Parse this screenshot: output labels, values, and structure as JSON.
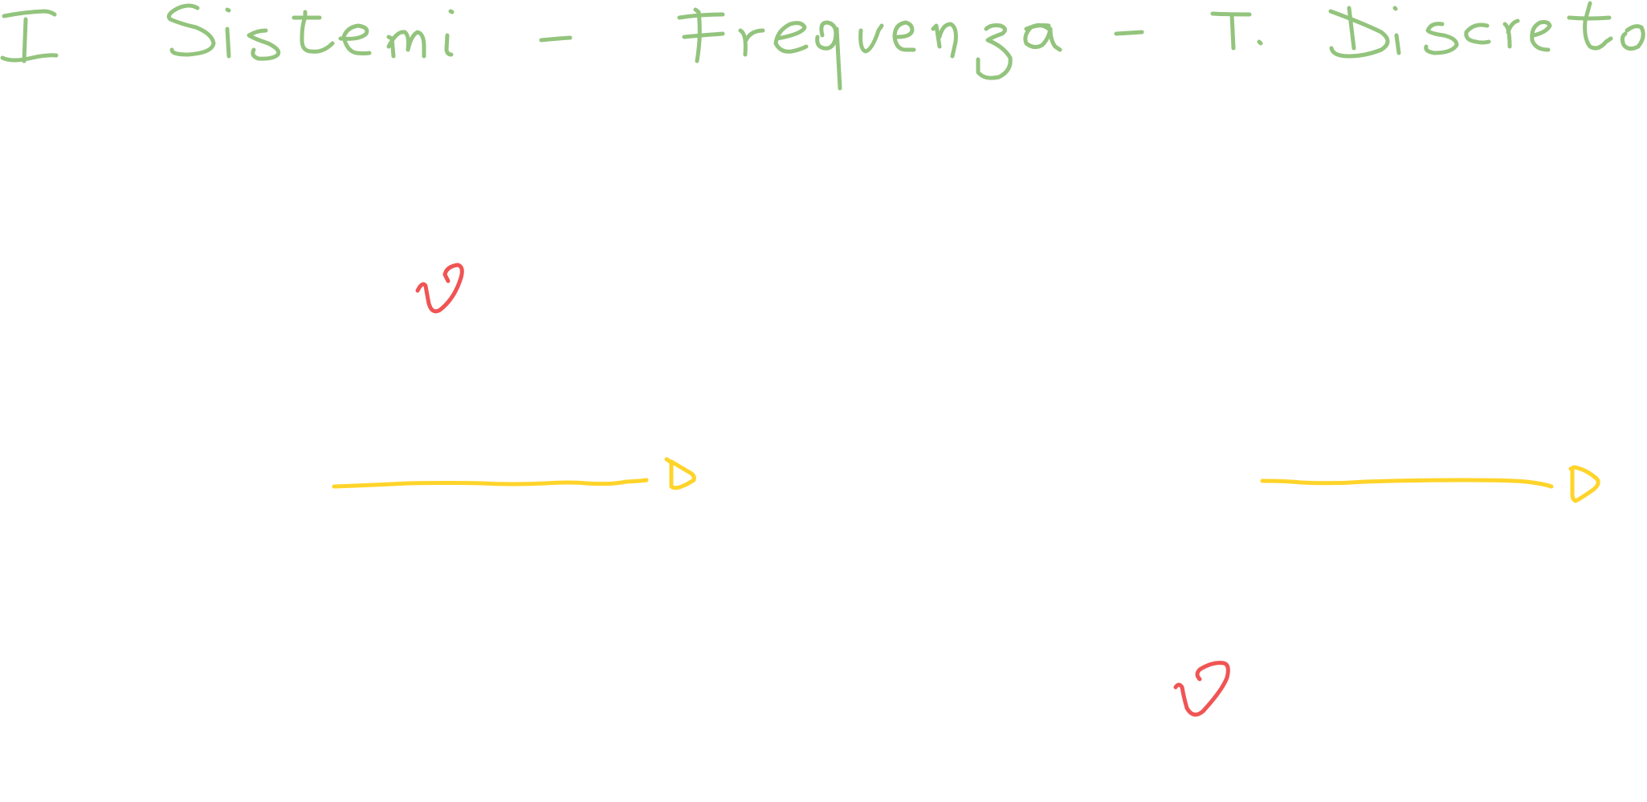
{
  "title": "I Sistemi - Frequenza - T. Discreto",
  "colors": {
    "title_ink": "#93c47d",
    "arrow_ink": "#ffd42a",
    "symbol_ink": "#f05454",
    "background": "#ffffff"
  },
  "symbols": {
    "upper_left": "ϑ",
    "lower_right": "ϑ"
  }
}
